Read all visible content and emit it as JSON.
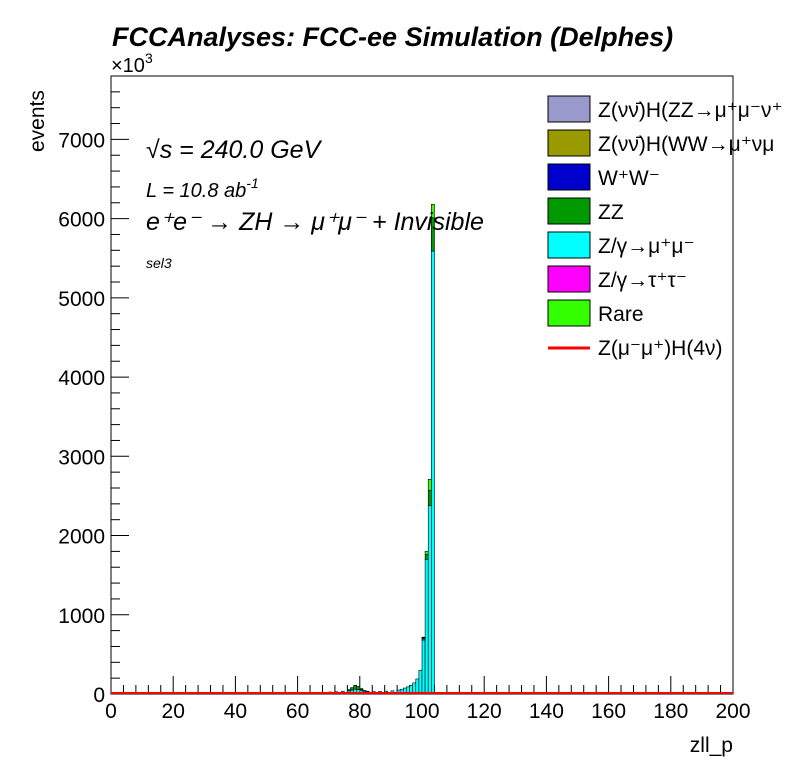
{
  "header": {
    "title": "FCCAnalyses: FCC-ee Simulation (Delphes)",
    "exponent": "×10",
    "exponent_power": "3"
  },
  "annotations": {
    "sqrt_s": "√s = 240.0 GeV",
    "lumi": "L = 10.8 ab",
    "lumi_power": "-1",
    "process": "e⁺e⁻ → ZH → μ⁺μ⁻ + Invisible",
    "selection": "sel3"
  },
  "chart_data": {
    "type": "bar",
    "stacked": true,
    "histogram": true,
    "xlabel": "zll_p",
    "ylabel": "events",
    "y_multiplier": 1000,
    "xlim": [
      0,
      200
    ],
    "ylim": [
      0,
      7800
    ],
    "grid": false,
    "legend_position": "top-right",
    "x_ticks": [
      "0",
      "20",
      "40",
      "60",
      "80",
      "100",
      "120",
      "140",
      "160",
      "180",
      "200"
    ],
    "y_ticks": [
      "0",
      "1000",
      "2000",
      "3000",
      "4000",
      "5000",
      "6000",
      "7000"
    ],
    "colors": {
      "zvvzz": "#9999cc",
      "zvvww": "#999900",
      "ww": "#0000cc",
      "zz": "#009900",
      "zmumu": "#00ffff",
      "ztautau": "#ff00ff",
      "rare": "#33ff00",
      "signal": "#ff0000"
    },
    "legend": [
      {
        "label": "Z(νν̄)H(ZZ→μ⁺μ⁻ν⁺",
        "color": "#9999cc",
        "style": "box"
      },
      {
        "label": "Z(νν̄)H(WW→μ⁺νμ",
        "color": "#999900",
        "style": "box"
      },
      {
        "label": "W⁺W⁻",
        "color": "#0000cc",
        "style": "box"
      },
      {
        "label": "ZZ",
        "color": "#009900",
        "style": "box"
      },
      {
        "label": "Z/γ→μ⁺μ⁻",
        "color": "#00ffff",
        "style": "box"
      },
      {
        "label": "Z/γ→τ⁺τ⁻",
        "color": "#ff00ff",
        "style": "box"
      },
      {
        "label": "Rare",
        "color": "#33ff00",
        "style": "box"
      },
      {
        "label": "Z(μ⁻μ⁺)H(4ν)",
        "color": "#ff0000",
        "style": "line"
      }
    ],
    "bin_width": 1,
    "series": [
      {
        "name": "Z/γ→μ⁺μ⁻",
        "color": "#00ffff",
        "x": [
          40,
          50,
          60,
          65,
          70,
          72,
          74,
          76,
          77,
          78,
          79,
          80,
          81,
          82,
          84,
          86,
          88,
          90,
          92,
          93,
          94,
          95,
          96,
          97,
          98,
          99,
          100,
          101,
          102,
          103
        ],
        "values": [
          12,
          15,
          18,
          20,
          25,
          28,
          35,
          40,
          50,
          60,
          55,
          45,
          35,
          30,
          30,
          32,
          35,
          40,
          50,
          60,
          75,
          90,
          110,
          140,
          190,
          300,
          680,
          1700,
          2380,
          5590
        ]
      },
      {
        "name": "ZZ",
        "color": "#009900",
        "x": [
          76,
          77,
          78,
          79,
          80,
          81,
          82,
          100,
          101,
          102,
          103
        ],
        "values": [
          15,
          30,
          50,
          40,
          20,
          10,
          5,
          20,
          60,
          190,
          420
        ]
      },
      {
        "name": "Rare",
        "color": "#33ff00",
        "x": [
          100,
          101,
          102,
          103
        ],
        "values": [
          15,
          40,
          140,
          170
        ]
      },
      {
        "name": "W⁺W⁻",
        "color": "#0000cc",
        "x": [
          40,
          60,
          80,
          100
        ],
        "values": [
          3,
          3,
          3,
          3
        ]
      }
    ]
  }
}
